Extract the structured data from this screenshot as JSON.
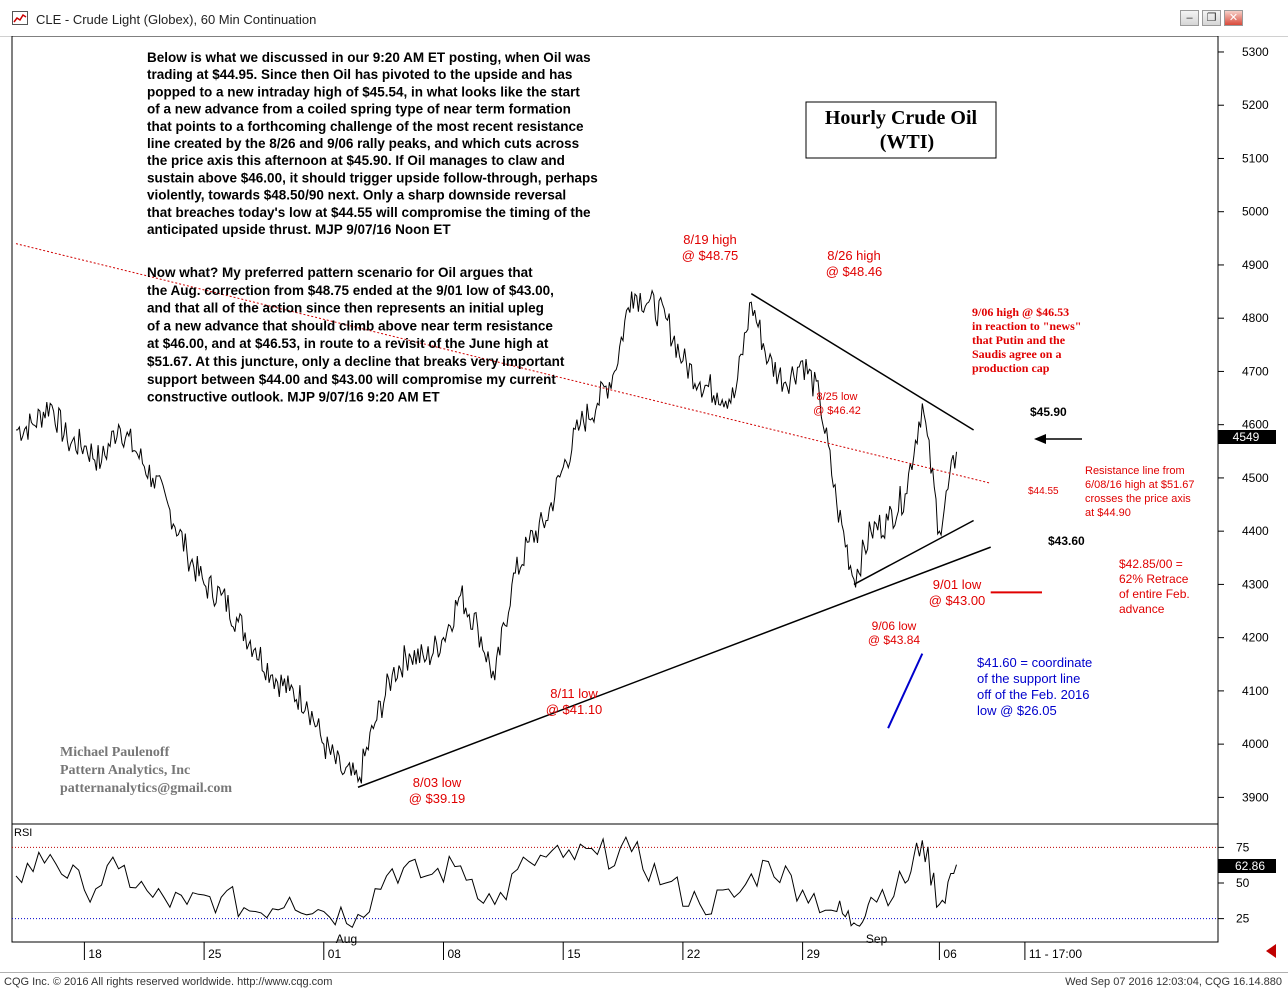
{
  "window": {
    "title": "CLE - Crude Light (Globex), 60 Min Continuation",
    "controls": [
      "minimize",
      "restore",
      "close"
    ]
  },
  "status": {
    "left": "CQG Inc. © 2016 All rights reserved worldwide. http://www.cqg.com",
    "right": "Wed Sep 07 2016 12:03:04, CQG 16.14.880"
  },
  "chart_data": {
    "type": "line",
    "symbol": "CLE",
    "title": "Hourly Crude Oil",
    "subtitle": "(WTI)",
    "price_axis": {
      "ticks": [
        "5300",
        "5200",
        "5100",
        "5000",
        "4900",
        "4800",
        "4700",
        "4600",
        "4500",
        "4400",
        "4300",
        "4200",
        "4100",
        "4000",
        "3900"
      ],
      "tick_values": [
        5300,
        5200,
        5100,
        5000,
        4900,
        4800,
        4700,
        4600,
        4500,
        4400,
        4300,
        4200,
        4100,
        4000,
        3900
      ],
      "range": [
        3850,
        5330
      ],
      "last_price": "4549"
    },
    "time_axis": {
      "labels": [
        "18",
        "25",
        "01",
        "08",
        "15",
        "22",
        "29",
        "06",
        "11 - 17:00"
      ],
      "month_labels": [
        "Aug",
        "Sep"
      ]
    },
    "price_series": [
      {
        "date": "2016-07-14",
        "price": 4590
      },
      {
        "date": "2016-07-15",
        "price": 4600
      },
      {
        "date": "2016-07-16",
        "price": 4640
      },
      {
        "date": "2016-07-17",
        "price": 4570
      },
      {
        "date": "2016-07-18",
        "price": 4560
      },
      {
        "date": "2016-07-19",
        "price": 4530
      },
      {
        "date": "2016-07-20",
        "price": 4600
      },
      {
        "date": "2016-07-21",
        "price": 4550
      },
      {
        "date": "2016-07-22",
        "price": 4500
      },
      {
        "date": "2016-07-23",
        "price": 4440
      },
      {
        "date": "2016-07-24",
        "price": 4360
      },
      {
        "date": "2016-07-25",
        "price": 4300
      },
      {
        "date": "2016-07-26",
        "price": 4280
      },
      {
        "date": "2016-07-27",
        "price": 4230
      },
      {
        "date": "2016-07-28",
        "price": 4180
      },
      {
        "date": "2016-07-29",
        "price": 4130
      },
      {
        "date": "2016-07-30",
        "price": 4100
      },
      {
        "date": "2016-07-31",
        "price": 4080
      },
      {
        "date": "2016-08-01",
        "price": 4000
      },
      {
        "date": "2016-08-02",
        "price": 3950
      },
      {
        "date": "2016-08-03",
        "price": 3930
      },
      {
        "date": "2016-08-04",
        "price": 4040
      },
      {
        "date": "2016-08-05",
        "price": 4130
      },
      {
        "date": "2016-08-06",
        "price": 4170
      },
      {
        "date": "2016-08-07",
        "price": 4160
      },
      {
        "date": "2016-08-08",
        "price": 4200
      },
      {
        "date": "2016-08-09",
        "price": 4280
      },
      {
        "date": "2016-08-10",
        "price": 4220
      },
      {
        "date": "2016-08-11",
        "price": 4120
      },
      {
        "date": "2016-08-12",
        "price": 4300
      },
      {
        "date": "2016-08-13",
        "price": 4380
      },
      {
        "date": "2016-08-14",
        "price": 4420
      },
      {
        "date": "2016-08-15",
        "price": 4520
      },
      {
        "date": "2016-08-16",
        "price": 4600
      },
      {
        "date": "2016-08-17",
        "price": 4640
      },
      {
        "date": "2016-08-18",
        "price": 4700
      },
      {
        "date": "2016-08-19",
        "price": 4850
      },
      {
        "date": "2016-08-20",
        "price": 4830
      },
      {
        "date": "2016-08-21",
        "price": 4800
      },
      {
        "date": "2016-08-22",
        "price": 4720
      },
      {
        "date": "2016-08-23",
        "price": 4680
      },
      {
        "date": "2016-08-24",
        "price": 4660
      },
      {
        "date": "2016-08-25",
        "price": 4650
      },
      {
        "date": "2016-08-26",
        "price": 4830
      },
      {
        "date": "2016-08-27",
        "price": 4720
      },
      {
        "date": "2016-08-28",
        "price": 4680
      },
      {
        "date": "2016-08-29",
        "price": 4720
      },
      {
        "date": "2016-08-30",
        "price": 4650
      },
      {
        "date": "2016-08-31",
        "price": 4450
      },
      {
        "date": "2016-09-01",
        "price": 4310
      },
      {
        "date": "2016-09-02",
        "price": 4400
      },
      {
        "date": "2016-09-03",
        "price": 4420
      },
      {
        "date": "2016-09-04",
        "price": 4470
      },
      {
        "date": "2016-09-05",
        "price": 4640
      },
      {
        "date": "2016-09-06",
        "price": 4400
      },
      {
        "date": "2016-09-07",
        "price": 4549
      }
    ],
    "rsi": {
      "label": "RSI",
      "ticks": [
        "75",
        "50",
        "25"
      ],
      "tick_values": [
        75,
        50,
        25
      ],
      "range": [
        10,
        90
      ],
      "last_value": "62.86",
      "series": [
        {
          "date": "2016-07-14",
          "value": 55
        },
        {
          "date": "2016-07-16",
          "value": 70
        },
        {
          "date": "2016-07-18",
          "value": 45
        },
        {
          "date": "2016-07-20",
          "value": 60
        },
        {
          "date": "2016-07-22",
          "value": 40
        },
        {
          "date": "2016-07-24",
          "value": 35
        },
        {
          "date": "2016-07-26",
          "value": 40
        },
        {
          "date": "2016-07-28",
          "value": 30
        },
        {
          "date": "2016-07-30",
          "value": 40
        },
        {
          "date": "2016-08-01",
          "value": 30
        },
        {
          "date": "2016-08-03",
          "value": 28
        },
        {
          "date": "2016-08-05",
          "value": 60
        },
        {
          "date": "2016-08-07",
          "value": 55
        },
        {
          "date": "2016-08-09",
          "value": 62
        },
        {
          "date": "2016-08-11",
          "value": 35
        },
        {
          "date": "2016-08-13",
          "value": 65
        },
        {
          "date": "2016-08-15",
          "value": 68
        },
        {
          "date": "2016-08-17",
          "value": 70
        },
        {
          "date": "2016-08-19",
          "value": 72
        },
        {
          "date": "2016-08-21",
          "value": 50
        },
        {
          "date": "2016-08-23",
          "value": 35
        },
        {
          "date": "2016-08-25",
          "value": 40
        },
        {
          "date": "2016-08-27",
          "value": 65
        },
        {
          "date": "2016-08-29",
          "value": 45
        },
        {
          "date": "2016-08-31",
          "value": 30
        },
        {
          "date": "2016-09-01",
          "value": 22
        },
        {
          "date": "2016-09-02",
          "value": 40
        },
        {
          "date": "2016-09-04",
          "value": 50
        },
        {
          "date": "2016-09-05",
          "value": 80
        },
        {
          "date": "2016-09-06",
          "value": 35
        },
        {
          "date": "2016-09-07",
          "value": 62.86
        }
      ]
    },
    "lines": {
      "support": {
        "from": {
          "date": "2016-08-03",
          "price": 3919
        },
        "to": {
          "date": "2016-09-09",
          "price": 4370
        }
      },
      "resistance": {
        "from": {
          "date": "2016-08-26",
          "price": 4846
        },
        "to": {
          "date": "2016-09-08",
          "price": 4590
        }
      },
      "near_support": {
        "from": {
          "date": "2016-09-01",
          "price": 4300
        },
        "to": {
          "date": "2016-09-08",
          "price": 4420
        }
      },
      "long_resistance": {
        "from": {
          "date": "2016-07-14",
          "price": 4940
        },
        "to": {
          "date": "2016-09-09",
          "price": 4490
        }
      },
      "retrace_level": {
        "from": {
          "date": "2016-09-09",
          "price": 4285
        },
        "to": {
          "date": "2016-09-12",
          "price": 4285
        }
      },
      "coordinate_line": {
        "from": {
          "date": "2016-09-03",
          "price": 4030
        },
        "to": {
          "date": "2016-09-05",
          "price": 4170
        }
      }
    },
    "colors": {
      "price": "#000000",
      "annotation_red": "#e00000",
      "annotation_blue": "#0000cc",
      "rsi_high": "#c00000",
      "rsi_low": "#0000cc"
    }
  },
  "commentary": {
    "noon": [
      "Below is what we discussed in our 9:20 AM ET posting, when Oil was",
      "trading at $44.95. Since then Oil has pivoted to the upside and has",
      "popped to a new intraday high of $45.54, in what looks like the start",
      "of a new advance from a coiled spring type of near term formation",
      "that points to a forthcoming challenge of the most recent resistance",
      "line created by the 8/26 and 9/06 rally peaks, and which cuts across",
      "the price axis this afternoon at $45.90. If Oil manages to claw and",
      "sustain above $46.00, it should trigger upside follow-through, perhaps",
      "violently, towards $48.50/90 next.  Only a sharp downside reversal",
      "that breaches today's low at $44.55 will compromise the timing of the",
      "anticipated upside thrust.  MJP 9/07/16 Noon ET"
    ],
    "morning": [
      "Now what? My preferred pattern scenario for Oil argues that",
      "the Aug. correction from $48.75 ended at the 9/01 low of $43.00,",
      "and that all of the action since then represents an initial upleg",
      "of a new advance that should climb above near term resistance",
      "at $46.00, and at $46.53, in route to a revisit of the June high at",
      "$51.67. At this juncture, only a decline that breaks very important",
      "support between $44.00 and $43.00 will compromise my current",
      "constructive outlook.  MJP 9/07/16 9:20 AM ET"
    ]
  },
  "annotations": {
    "high_819": [
      "8/19 high",
      "@ $48.75"
    ],
    "high_826": [
      "8/26 high",
      "@ $48.46"
    ],
    "low_825": [
      "8/25 low",
      "@ $46.42"
    ],
    "news_906": [
      "9/06 high @ $46.53",
      "in reaction to \"news\"",
      "that Putin and the",
      "Saudis agree on a",
      "production cap"
    ],
    "level_4590": "$45.90",
    "level_4455": "$44.55",
    "level_4360": "$43.60",
    "resistance_note": [
      "Resistance line from",
      "6/08/16 high at $51.67",
      "crosses the price axis",
      "at $44.90"
    ],
    "retrace_note": [
      "$42.85/00 =",
      "62% Retrace",
      "of entire Feb.",
      "advance"
    ],
    "low_901": [
      "9/01 low",
      "@ $43.00"
    ],
    "low_906": [
      "9/06 low",
      "@ $43.84"
    ],
    "low_811": [
      "8/11 low",
      "@ $41.10"
    ],
    "low_803": [
      "8/03 low",
      "@ $39.19"
    ],
    "coordinate_note": [
      "$41.60 = coordinate",
      "of the support line",
      "off of the Feb. 2016",
      "low @ $26.05"
    ]
  },
  "author": {
    "name": "Michael Paulenoff",
    "company": "Pattern Analytics, Inc",
    "email": "patternanalytics@gmail.com"
  }
}
